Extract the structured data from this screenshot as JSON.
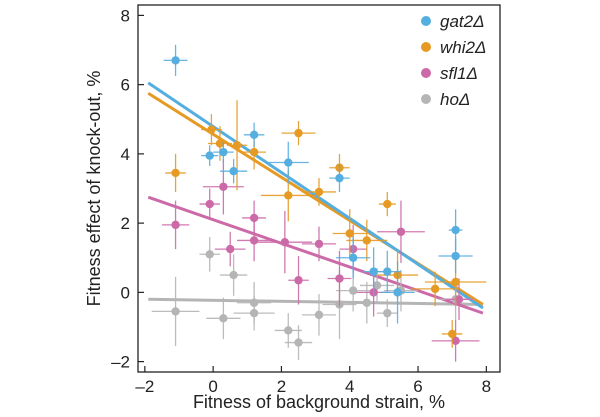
{
  "chart_data": {
    "type": "scatter",
    "xlabel": "Fitness of background strain, %",
    "ylabel": "Fitness effect of knock-out, %",
    "xlim": [
      -2.2,
      8.4
    ],
    "ylim": [
      -2.3,
      8.3
    ],
    "xticks": [
      -2,
      0,
      2,
      4,
      6,
      8
    ],
    "yticks": [
      -2,
      0,
      2,
      4,
      6,
      8
    ],
    "xtick_labels": [
      "–2",
      "0",
      "2",
      "4",
      "6",
      "8"
    ],
    "ytick_labels": [
      "–2",
      "0",
      "2",
      "4",
      "6",
      "8"
    ],
    "grid": false,
    "legend_position": "top-right",
    "series": [
      {
        "name": "gat2Δ",
        "color": "#55aee0",
        "fit": {
          "x": [
            -1.9,
            7.9
          ],
          "y": [
            6.05,
            -0.45
          ]
        },
        "points": [
          {
            "x": -1.1,
            "y": 6.7,
            "xerr": 0.35,
            "yerr": 0.45
          },
          {
            "x": -0.1,
            "y": 3.95,
            "xerr": 0.25,
            "yerr": 0.3
          },
          {
            "x": 0.3,
            "y": 4.05,
            "xerr": 0.3,
            "yerr": 0.3
          },
          {
            "x": 0.6,
            "y": 3.5,
            "xerr": 0.4,
            "yerr": 0.35
          },
          {
            "x": 1.2,
            "y": 4.55,
            "xerr": 0.3,
            "yerr": 0.35
          },
          {
            "x": 2.2,
            "y": 3.75,
            "xerr": 0.6,
            "yerr": 0.6
          },
          {
            "x": 3.7,
            "y": 3.3,
            "xerr": 0.3,
            "yerr": 0.4
          },
          {
            "x": 4.1,
            "y": 1.0,
            "xerr": 0.5,
            "yerr": 0.6
          },
          {
            "x": 4.7,
            "y": 0.6,
            "xerr": 0.3,
            "yerr": 0.7
          },
          {
            "x": 5.1,
            "y": 0.6,
            "xerr": 0.4,
            "yerr": 0.6
          },
          {
            "x": 5.4,
            "y": 0.0,
            "xerr": 0.5,
            "yerr": 0.9
          },
          {
            "x": 7.1,
            "y": 1.8,
            "xerr": 0.2,
            "yerr": 0.6
          },
          {
            "x": 7.1,
            "y": 1.05,
            "xerr": 0.5,
            "yerr": 0.5
          }
        ]
      },
      {
        "name": "whi2Δ",
        "color": "#e69a24",
        "fit": {
          "x": [
            -1.9,
            7.9
          ],
          "y": [
            5.75,
            -0.35
          ]
        },
        "points": [
          {
            "x": -1.1,
            "y": 3.45,
            "xerr": 0.3,
            "yerr": 0.55
          },
          {
            "x": -0.05,
            "y": 4.7,
            "xerr": 0.3,
            "yerr": 0.45
          },
          {
            "x": 0.2,
            "y": 4.3,
            "xerr": 0.35,
            "yerr": 0.5
          },
          {
            "x": 0.7,
            "y": 4.25,
            "xerr": 0.3,
            "yerr": 1.3
          },
          {
            "x": 1.2,
            "y": 4.05,
            "xerr": 0.35,
            "yerr": 0.5
          },
          {
            "x": 2.5,
            "y": 4.6,
            "xerr": 0.5,
            "yerr": 0.35
          },
          {
            "x": 2.2,
            "y": 2.8,
            "xerr": 0.8,
            "yerr": 0.75
          },
          {
            "x": 3.1,
            "y": 2.9,
            "xerr": 0.5,
            "yerr": 0.4
          },
          {
            "x": 3.7,
            "y": 3.6,
            "xerr": 0.3,
            "yerr": 0.4
          },
          {
            "x": 4.0,
            "y": 1.7,
            "xerr": 0.5,
            "yerr": 0.7
          },
          {
            "x": 4.5,
            "y": 1.5,
            "xerr": 0.6,
            "yerr": 0.6
          },
          {
            "x": 5.1,
            "y": 2.55,
            "xerr": 0.25,
            "yerr": 0.35
          },
          {
            "x": 5.4,
            "y": 0.5,
            "xerr": 0.6,
            "yerr": 0.7
          },
          {
            "x": 6.5,
            "y": 0.1,
            "xerr": 0.7,
            "yerr": 0.5
          },
          {
            "x": 7.1,
            "y": 0.3,
            "xerr": 0.9,
            "yerr": 0.7
          },
          {
            "x": 7.0,
            "y": -1.2,
            "xerr": 0.3,
            "yerr": 0.4
          }
        ]
      },
      {
        "name": "sfl1Δ",
        "color": "#cc6aa8",
        "fit": {
          "x": [
            -1.9,
            7.9
          ],
          "y": [
            2.75,
            -0.6
          ]
        },
        "points": [
          {
            "x": -1.1,
            "y": 1.95,
            "xerr": 0.4,
            "yerr": 0.7
          },
          {
            "x": -0.1,
            "y": 2.55,
            "xerr": 0.3,
            "yerr": 0.45
          },
          {
            "x": 0.3,
            "y": 3.05,
            "xerr": 0.6,
            "yerr": 0.8
          },
          {
            "x": 0.5,
            "y": 1.25,
            "xerr": 0.45,
            "yerr": 0.5
          },
          {
            "x": 1.2,
            "y": 2.15,
            "xerr": 0.35,
            "yerr": 0.5
          },
          {
            "x": 1.2,
            "y": 1.5,
            "xerr": 0.5,
            "yerr": 0.6
          },
          {
            "x": 2.1,
            "y": 1.45,
            "xerr": 0.8,
            "yerr": 0.9
          },
          {
            "x": 2.5,
            "y": 0.35,
            "xerr": 0.3,
            "yerr": 0.7
          },
          {
            "x": 3.1,
            "y": 1.4,
            "xerr": 0.5,
            "yerr": 0.5
          },
          {
            "x": 3.7,
            "y": 0.4,
            "xerr": 0.35,
            "yerr": 0.8
          },
          {
            "x": 4.1,
            "y": 1.25,
            "xerr": 0.4,
            "yerr": 0.7
          },
          {
            "x": 4.7,
            "y": 0.0,
            "xerr": 0.5,
            "yerr": 0.7
          },
          {
            "x": 5.5,
            "y": 1.75,
            "xerr": 0.7,
            "yerr": 0.9
          },
          {
            "x": 7.1,
            "y": -1.4,
            "xerr": 0.7,
            "yerr": 0.6
          },
          {
            "x": 7.2,
            "y": -0.2,
            "xerr": 0.4,
            "yerr": 0.6
          }
        ]
      },
      {
        "name": "hoΔ",
        "color": "#b5b5b5",
        "fit": {
          "x": [
            -1.9,
            7.9
          ],
          "y": [
            -0.2,
            -0.35
          ]
        },
        "points": [
          {
            "x": -1.1,
            "y": -0.55,
            "xerr": 0.7,
            "yerr": 1.0
          },
          {
            "x": -0.1,
            "y": 1.1,
            "xerr": 0.3,
            "yerr": 0.5
          },
          {
            "x": 0.3,
            "y": -0.75,
            "xerr": 0.5,
            "yerr": 0.6
          },
          {
            "x": 0.6,
            "y": 0.5,
            "xerr": 0.4,
            "yerr": 0.6
          },
          {
            "x": 1.2,
            "y": -0.3,
            "xerr": 0.5,
            "yerr": 0.6
          },
          {
            "x": 1.2,
            "y": -0.6,
            "xerr": 0.6,
            "yerr": 0.5
          },
          {
            "x": 2.2,
            "y": -1.1,
            "xerr": 0.4,
            "yerr": 0.5
          },
          {
            "x": 2.5,
            "y": -1.45,
            "xerr": 0.4,
            "yerr": 0.5
          },
          {
            "x": 3.1,
            "y": -0.65,
            "xerr": 0.5,
            "yerr": 0.6
          },
          {
            "x": 3.7,
            "y": -0.35,
            "xerr": 0.5,
            "yerr": 1.0
          },
          {
            "x": 4.1,
            "y": 0.05,
            "xerr": 0.5,
            "yerr": 0.6
          },
          {
            "x": 4.5,
            "y": -0.3,
            "xerr": 0.5,
            "yerr": 0.6
          },
          {
            "x": 4.8,
            "y": 0.2,
            "xerr": 0.5,
            "yerr": 0.5
          },
          {
            "x": 5.1,
            "y": -0.6,
            "xerr": 0.3,
            "yerr": 0.4
          },
          {
            "x": 5.5,
            "y": 0.05,
            "xerr": 0.5,
            "yerr": 0.6
          },
          {
            "x": 7.1,
            "y": -0.2,
            "xerr": 0.5,
            "yerr": 0.6
          }
        ]
      }
    ]
  }
}
